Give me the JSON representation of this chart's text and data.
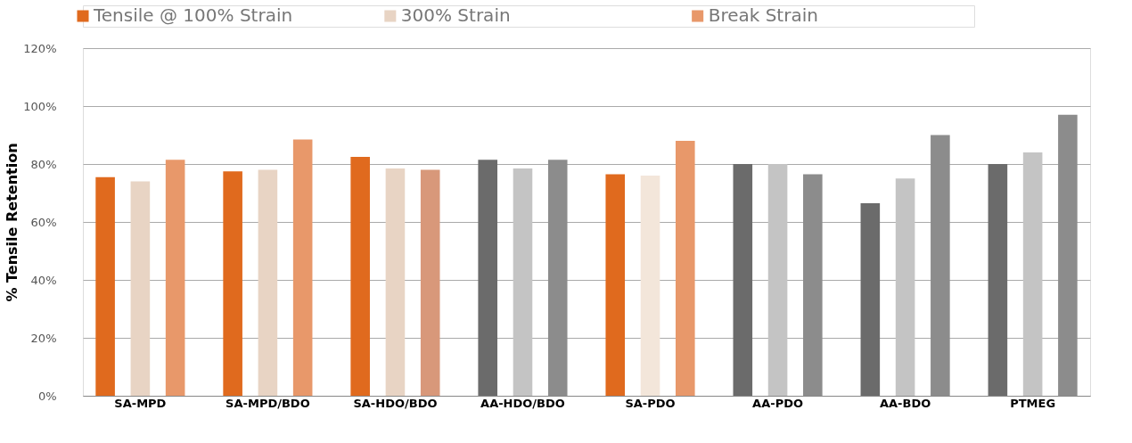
{
  "chart_data": {
    "type": "bar",
    "ylabel": "% Tensile  Retention",
    "categories": [
      "SA-MPD",
      "SA-MPD/BDO",
      "SA-HDO/BDO",
      "AA-HDO/BDO",
      "SA-PDO",
      "AA-PDO",
      "AA-BDO",
      "PTMEG"
    ],
    "series": [
      {
        "name": "Tensile @ 100% Strain",
        "color": "#e06a1e",
        "colors": [
          "#e06a1e",
          "#e06a1e",
          "#e06a1e",
          "#6b6b6b",
          "#e06a1e",
          "#6b6b6b",
          "#6b6b6b",
          "#6b6b6b"
        ],
        "values": [
          75.5,
          77.5,
          82.5,
          81.5,
          76.5,
          80,
          66.5,
          80
        ]
      },
      {
        "name": "300% Strain",
        "color": "#e8d4c4",
        "colors": [
          "#e8d4c4",
          "#e8d4c4",
          "#e8d4c4",
          "#c4c4c4",
          "#f3e6da",
          "#c4c4c4",
          "#c4c4c4",
          "#c4c4c4"
        ],
        "values": [
          74,
          78,
          78.5,
          78.5,
          76,
          80,
          75,
          84
        ]
      },
      {
        "name": "Break Strain",
        "color": "#e8986a",
        "colors": [
          "#e8986a",
          "#e8986a",
          "#d8987a",
          "#8c8c8c",
          "#e8986a",
          "#8c8c8c",
          "#8c8c8c",
          "#8c8c8c"
        ],
        "values": [
          81.5,
          88.5,
          78,
          81.5,
          88,
          76.5,
          90,
          97
        ]
      }
    ],
    "ylim": [
      0,
      120
    ],
    "yticks": [
      {
        "value": 0,
        "label": "0%"
      },
      {
        "value": 20,
        "label": "20%"
      },
      {
        "value": 40,
        "label": "40%"
      },
      {
        "value": 60,
        "label": "60%"
      },
      {
        "value": 80,
        "label": "80%"
      },
      {
        "value": 100,
        "label": "100%"
      },
      {
        "value": 120,
        "label": "120%"
      }
    ],
    "grid": "y",
    "legend": "top left"
  }
}
